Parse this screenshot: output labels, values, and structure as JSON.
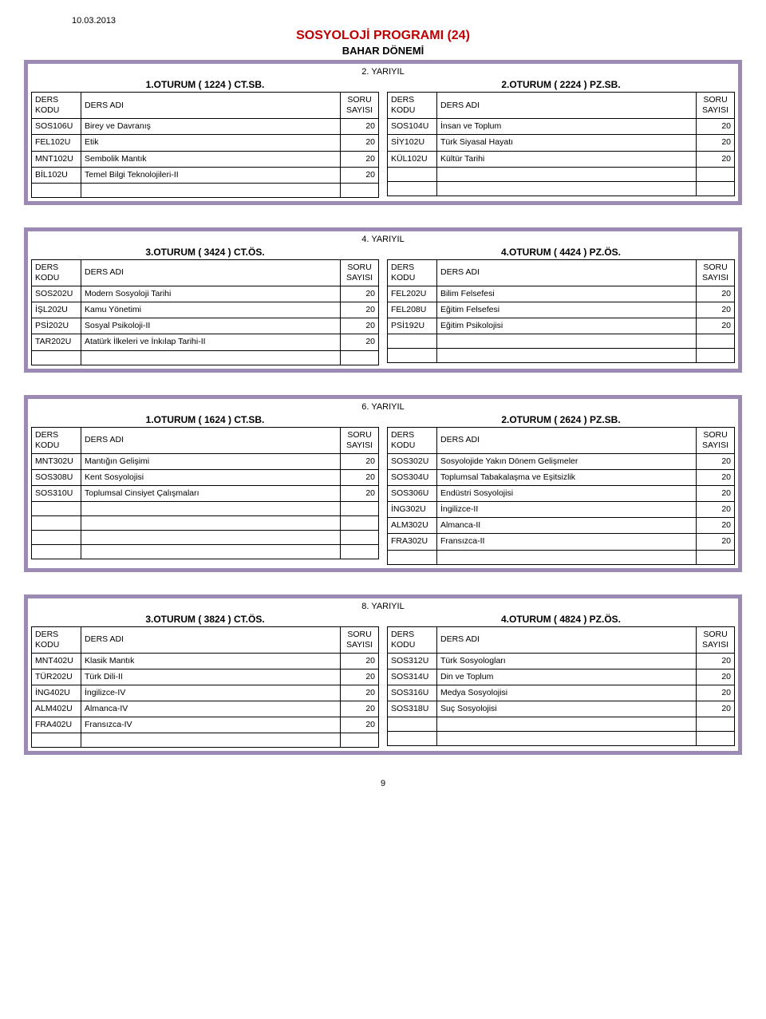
{
  "date": "10.03.2013",
  "program_title": "SOSYOLOJİ PROGRAMI (24)",
  "semester_title": "BAHAR DÖNEMİ",
  "page_number": "9",
  "headers": {
    "ders_kodu": "DERS KODU",
    "ders_adi": "DERS ADI",
    "soru_sayisi": "SORU SAYISI"
  },
  "sections": [
    {
      "yariyil": "2. YARIYIL",
      "left": {
        "title": "1.OTURUM ( 1224 ) CT.SB.",
        "rows": [
          {
            "code": "SOS106U",
            "name": "Birey ve Davranış",
            "count": "20"
          },
          {
            "code": "FEL102U",
            "name": "Etik",
            "count": "20"
          },
          {
            "code": "MNT102U",
            "name": "Sembolik Mantık",
            "count": "20"
          },
          {
            "code": "BİL102U",
            "name": "Temel Bilgi Teknolojileri-II",
            "count": "20"
          }
        ],
        "empty_rows": 1
      },
      "right": {
        "title": "2.OTURUM ( 2224 ) PZ.SB.",
        "rows": [
          {
            "code": "SOS104U",
            "name": "İnsan ve Toplum",
            "count": "20"
          },
          {
            "code": "SİY102U",
            "name": "Türk Siyasal Hayatı",
            "count": "20"
          },
          {
            "code": "KÜL102U",
            "name": "Kültür Tarihi",
            "count": "20"
          }
        ],
        "empty_rows": 2
      }
    },
    {
      "yariyil": "4. YARIYIL",
      "left": {
        "title": "3.OTURUM ( 3424 ) CT.ÖS.",
        "rows": [
          {
            "code": "SOS202U",
            "name": "Modern Sosyoloji Tarihi",
            "count": "20"
          },
          {
            "code": "İŞL202U",
            "name": "Kamu Yönetimi",
            "count": "20"
          },
          {
            "code": "PSİ202U",
            "name": "Sosyal Psikoloji-II",
            "count": "20"
          },
          {
            "code": "TAR202U",
            "name": "Atatürk İlkeleri ve İnkılap Tarihi-II",
            "count": "20"
          }
        ],
        "empty_rows": 1
      },
      "right": {
        "title": "4.OTURUM ( 4424 ) PZ.ÖS.",
        "rows": [
          {
            "code": "FEL202U",
            "name": "Bilim Felsefesi",
            "count": "20"
          },
          {
            "code": "FEL208U",
            "name": "Eğitim Felsefesi",
            "count": "20"
          },
          {
            "code": "PSİ192U",
            "name": "Eğitim Psikolojisi",
            "count": "20"
          }
        ],
        "empty_rows": 2
      }
    },
    {
      "yariyil": "6. YARIYIL",
      "left": {
        "title": "1.OTURUM ( 1624 ) CT.SB.",
        "rows": [
          {
            "code": "MNT302U",
            "name": "Mantığın Gelişimi",
            "count": "20"
          },
          {
            "code": "SOS308U",
            "name": "Kent Sosyolojisi",
            "count": "20"
          },
          {
            "code": "SOS310U",
            "name": "Toplumsal Cinsiyet Çalışmaları",
            "count": "20"
          }
        ],
        "empty_rows": 4
      },
      "right": {
        "title": "2.OTURUM ( 2624 ) PZ.SB.",
        "rows": [
          {
            "code": "SOS302U",
            "name": "Sosyolojide Yakın Dönem Gelişmeler",
            "count": "20"
          },
          {
            "code": "SOS304U",
            "name": "Toplumsal Tabakalaşma ve Eşitsizlik",
            "count": "20"
          },
          {
            "code": "SOS306U",
            "name": "Endüstri Sosyolojisi",
            "count": "20"
          },
          {
            "code": "İNG302U",
            "name": "İngilizce-II",
            "count": "20"
          },
          {
            "code": "ALM302U",
            "name": "Almanca-II",
            "count": "20"
          },
          {
            "code": "FRA302U",
            "name": "Fransızca-II",
            "count": "20"
          }
        ],
        "empty_rows": 1
      }
    },
    {
      "yariyil": "8. YARIYIL",
      "left": {
        "title": "3.OTURUM ( 3824 ) CT.ÖS.",
        "rows": [
          {
            "code": "MNT402U",
            "name": "Klasik Mantık",
            "count": "20"
          },
          {
            "code": "TÜR202U",
            "name": "Türk Dili-II",
            "count": "20"
          },
          {
            "code": "İNG402U",
            "name": "İngilizce-IV",
            "count": "20"
          },
          {
            "code": "ALM402U",
            "name": "Almanca-IV",
            "count": "20"
          },
          {
            "code": "FRA402U",
            "name": "Fransızca-IV",
            "count": "20"
          }
        ],
        "empty_rows": 1
      },
      "right": {
        "title": "4.OTURUM ( 4824 ) PZ.ÖS.",
        "rows": [
          {
            "code": "SOS312U",
            "name": "Türk Sosyologları",
            "count": "20"
          },
          {
            "code": "SOS314U",
            "name": "Din ve Toplum",
            "count": "20"
          },
          {
            "code": "SOS316U",
            "name": "Medya Sosyolojisi",
            "count": "20"
          },
          {
            "code": "SOS318U",
            "name": "Suç Sosyolojisi",
            "count": "20"
          }
        ],
        "empty_rows": 2
      }
    }
  ]
}
